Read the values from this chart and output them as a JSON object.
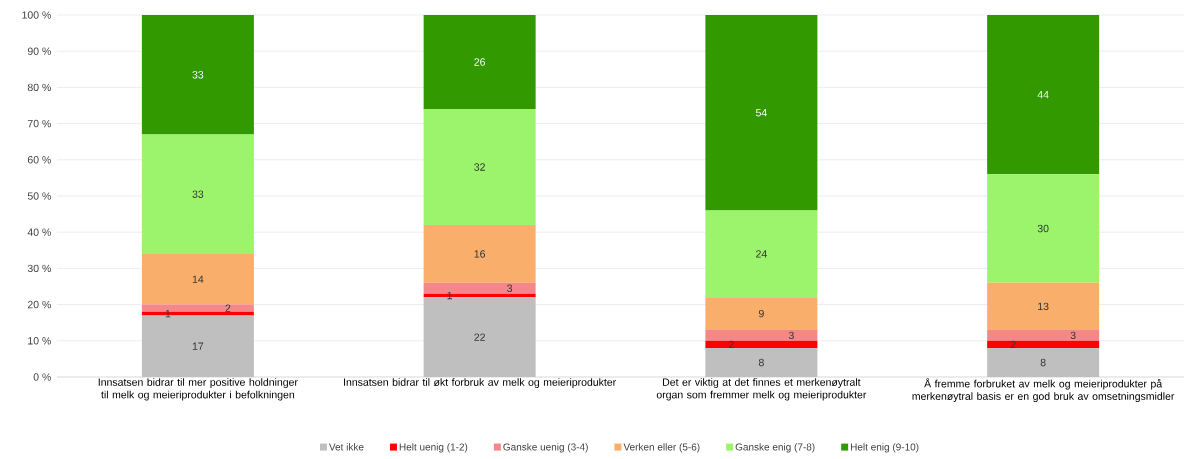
{
  "chart_data": {
    "type": "bar",
    "stacked": true,
    "data_labels": true,
    "grid": "y",
    "legend": "bottom",
    "categories": [
      "Innsatsen bidrar til mer positive holdninger til melk og meieriprodukter i befolkningen",
      "Innsatsen bidrar til økt forbruk av melk og meieriprodukter",
      "Det er viktig at det finnes et merkenøytralt organ som fremmer melk og meieriprodukter",
      "Å fremme forbruket av melk og meieriprodukter på merkenøytral basis er en god bruk av omsetningsmidler"
    ],
    "ylim": [
      0,
      100
    ],
    "yticks": [
      {
        "value": 0,
        "label": "0 %"
      },
      {
        "value": 10,
        "label": "10 %"
      },
      {
        "value": 20,
        "label": "20 %"
      },
      {
        "value": 30,
        "label": "30 %"
      },
      {
        "value": 40,
        "label": "40 %"
      },
      {
        "value": 50,
        "label": "50 %"
      },
      {
        "value": 60,
        "label": "60 %"
      },
      {
        "value": 70,
        "label": "70 %"
      },
      {
        "value": 80,
        "label": "80 %"
      },
      {
        "value": 90,
        "label": "90 %"
      },
      {
        "value": 100,
        "label": "100 %"
      }
    ],
    "series": [
      {
        "name": "Vet ikke",
        "color": "#bfbfbf",
        "values": [
          17,
          22,
          8,
          8
        ]
      },
      {
        "name": "Helt uenig (1-2)",
        "color": "#ff0000",
        "values": [
          1,
          1,
          2,
          2
        ]
      },
      {
        "name": "Ganske uenig (3-4)",
        "color": "#f4878a",
        "values": [
          2,
          3,
          3,
          3
        ]
      },
      {
        "name": "Verken eller (5-6)",
        "color": "#f9ae6b",
        "values": [
          14,
          16,
          9,
          13
        ]
      },
      {
        "name": "Ganske enig (7-8)",
        "color": "#9cf46c",
        "values": [
          33,
          32,
          24,
          30
        ]
      },
      {
        "name": "Helt enig (9-10)",
        "color": "#339900",
        "values": [
          33,
          26,
          54,
          44
        ]
      }
    ]
  }
}
